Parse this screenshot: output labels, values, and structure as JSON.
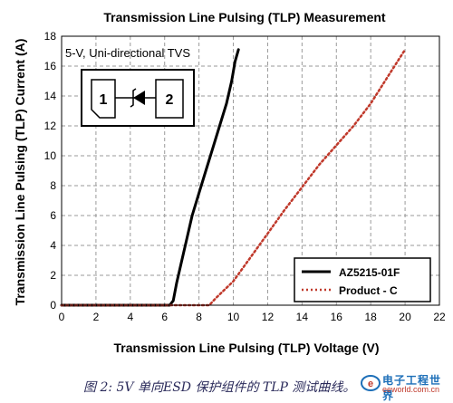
{
  "chart_data": {
    "type": "line",
    "title": "Transmission Line Pulsing (TLP) Measurement",
    "xlabel": "Transmission Line Pulsing (TLP) Voltage (V)",
    "ylabel": "Transmission Line Pulsing (TLP) Current (A)",
    "xlim": [
      0,
      22
    ],
    "ylim": [
      0,
      18
    ],
    "xticks": [
      0,
      2,
      4,
      6,
      8,
      10,
      12,
      14,
      16,
      18,
      20,
      22
    ],
    "yticks": [
      0,
      2,
      4,
      6,
      8,
      10,
      12,
      14,
      16,
      18
    ],
    "grid": true,
    "legend_position": "bottom-right",
    "annotation": "5-V, Uni-directional TVS",
    "symbol_labels": [
      "1",
      "2"
    ],
    "series": [
      {
        "name": "AZ5215-01F",
        "style": "solid",
        "color": "#000000",
        "x": [
          0,
          6.3,
          6.5,
          6.7,
          7.0,
          7.3,
          7.6,
          8.0,
          8.4,
          8.8,
          9.2,
          9.6,
          9.9,
          10.1,
          10.3
        ],
        "y": [
          0,
          0,
          0.3,
          1.5,
          3.0,
          4.5,
          6.0,
          7.5,
          9.0,
          10.5,
          12.0,
          13.5,
          15.0,
          16.3,
          17.1
        ]
      },
      {
        "name": "Product - C",
        "style": "dotted",
        "color": "#c0392b",
        "x": [
          0,
          8.6,
          9.0,
          10.0,
          11.0,
          12.0,
          13.0,
          14.0,
          15.0,
          16.0,
          17.0,
          18.0,
          19.0,
          20.0
        ],
        "y": [
          0,
          0,
          0.5,
          1.6,
          3.2,
          4.8,
          6.4,
          7.9,
          9.4,
          10.7,
          12.0,
          13.5,
          15.3,
          17.1
        ]
      }
    ]
  },
  "caption": "图 2: 5V 单向ESD 保护组件的 TLP 测试曲线。",
  "watermark": {
    "name_cn": "电子工程世界",
    "url": "eeworld.com.cn"
  }
}
